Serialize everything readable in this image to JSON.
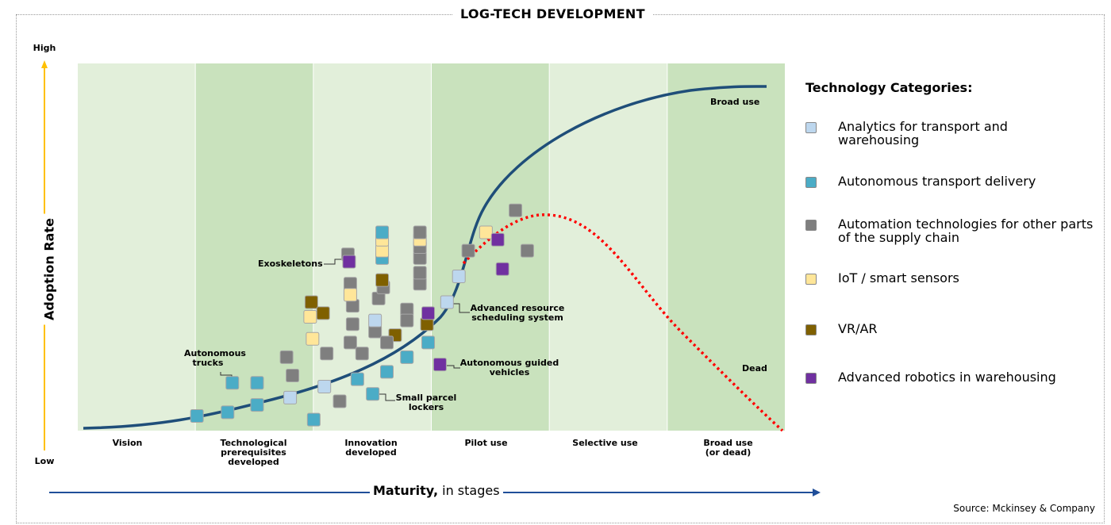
{
  "title": "LOG-TECH DEVELOPMENT",
  "y_axis": {
    "label": "Adoption Rate",
    "high": "High",
    "low": "Low"
  },
  "x_axis": {
    "label_bold": "Maturity,",
    "label_rest": " in stages"
  },
  "stages": [
    "Vision",
    "Technological prerequisites developed",
    "Innovation developed",
    "Pilot use",
    "Selective use",
    "Broad use (or dead)"
  ],
  "curve_labels": {
    "broad": "Broad use",
    "dead": "Dead"
  },
  "annotations": {
    "exoskeletons": "Exoskeletons",
    "autonomous_trucks": "Autonomous trucks",
    "small_parcel_lockers": "Small parcel lockers",
    "advanced_resource": "Advanced resource scheduling system",
    "agv": "Autonomous guided vehicles"
  },
  "legend": {
    "title": "Technology Categories:",
    "items": [
      {
        "key": "A",
        "label": "Analytics for transport and warehousing",
        "color": "#bdd7ee"
      },
      {
        "key": "T",
        "label": "Autonomous transport delivery",
        "color": "#4bacc6"
      },
      {
        "key": "G",
        "label": "Automation technologies for other parts of the supply chain",
        "color": "#7f7f7f"
      },
      {
        "key": "Y",
        "label": "IoT / smart sensors",
        "color": "#ffe699"
      },
      {
        "key": "V",
        "label": "VR/AR",
        "color": "#7f6000"
      },
      {
        "key": "R",
        "label": "Advanced robotics in warehousing",
        "color": "#7030a0"
      }
    ]
  },
  "source": "Source: Mckinsey & Company",
  "chart_data": {
    "type": "scatter",
    "xlabel": "Maturity, in stages",
    "ylabel": "Adoption Rate",
    "x_unit": "stage (0-6)",
    "y_unit": "adoption (0-100, Low to High)",
    "xlim": [
      0,
      6
    ],
    "ylim": [
      0,
      100
    ],
    "curves": [
      "adoption s-curve to Broad use",
      "dotted decline to Dead"
    ],
    "points": [
      {
        "c": "T",
        "x": 1.01,
        "y": 4
      },
      {
        "c": "T",
        "x": 1.27,
        "y": 5
      },
      {
        "c": "T",
        "x": 1.52,
        "y": 7
      },
      {
        "c": "A",
        "x": 1.8,
        "y": 9
      },
      {
        "c": "T",
        "x": 1.31,
        "y": 13
      },
      {
        "c": "T",
        "x": 1.52,
        "y": 13
      },
      {
        "c": "G",
        "x": 1.82,
        "y": 15
      },
      {
        "c": "G",
        "x": 1.77,
        "y": 20
      },
      {
        "c": "A",
        "x": 2.09,
        "y": 12
      },
      {
        "c": "T",
        "x": 2.0,
        "y": 3
      },
      {
        "c": "G",
        "x": 2.22,
        "y": 8
      },
      {
        "c": "Y",
        "x": 1.99,
        "y": 25
      },
      {
        "c": "G",
        "x": 2.11,
        "y": 21
      },
      {
        "c": "V",
        "x": 1.98,
        "y": 35
      },
      {
        "c": "Y",
        "x": 1.97,
        "y": 31
      },
      {
        "c": "V",
        "x": 2.08,
        "y": 32
      },
      {
        "c": "G",
        "x": 2.29,
        "y": 48
      },
      {
        "c": "R",
        "x": 2.3,
        "y": 46
      },
      {
        "c": "G",
        "x": 2.31,
        "y": 40
      },
      {
        "c": "G",
        "x": 2.33,
        "y": 34
      },
      {
        "c": "Y",
        "x": 2.31,
        "y": 37
      },
      {
        "c": "G",
        "x": 2.33,
        "y": 29
      },
      {
        "c": "G",
        "x": 2.31,
        "y": 24
      },
      {
        "c": "G",
        "x": 2.41,
        "y": 21
      },
      {
        "c": "T",
        "x": 2.37,
        "y": 14
      },
      {
        "c": "T",
        "x": 2.5,
        "y": 10
      },
      {
        "c": "T",
        "x": 2.62,
        "y": 16
      },
      {
        "c": "T",
        "x": 2.79,
        "y": 20
      },
      {
        "c": "G",
        "x": 2.55,
        "y": 36
      },
      {
        "c": "G",
        "x": 2.59,
        "y": 39
      },
      {
        "c": "V",
        "x": 2.58,
        "y": 41
      },
      {
        "c": "G",
        "x": 2.52,
        "y": 27
      },
      {
        "c": "A",
        "x": 2.52,
        "y": 30
      },
      {
        "c": "V",
        "x": 2.69,
        "y": 26
      },
      {
        "c": "G",
        "x": 2.62,
        "y": 24
      },
      {
        "c": "T",
        "x": 2.58,
        "y": 47
      },
      {
        "c": "Y",
        "x": 2.58,
        "y": 49
      },
      {
        "c": "Y",
        "x": 2.58,
        "y": 52
      },
      {
        "c": "T",
        "x": 2.58,
        "y": 54
      },
      {
        "c": "G",
        "x": 2.9,
        "y": 40
      },
      {
        "c": "G",
        "x": 2.9,
        "y": 43
      },
      {
        "c": "G",
        "x": 2.9,
        "y": 47
      },
      {
        "c": "G",
        "x": 2.9,
        "y": 50
      },
      {
        "c": "Y",
        "x": 2.9,
        "y": 52
      },
      {
        "c": "G",
        "x": 2.9,
        "y": 54
      },
      {
        "c": "G",
        "x": 2.79,
        "y": 33
      },
      {
        "c": "G",
        "x": 2.79,
        "y": 30
      },
      {
        "c": "V",
        "x": 2.96,
        "y": 29
      },
      {
        "c": "R",
        "x": 2.97,
        "y": 32
      },
      {
        "c": "T",
        "x": 2.97,
        "y": 24
      },
      {
        "c": "R",
        "x": 3.07,
        "y": 18
      },
      {
        "c": "A",
        "x": 3.13,
        "y": 35
      },
      {
        "c": "A",
        "x": 3.23,
        "y": 42
      },
      {
        "c": "G",
        "x": 3.31,
        "y": 49
      },
      {
        "c": "Y",
        "x": 3.46,
        "y": 54
      },
      {
        "c": "R",
        "x": 3.56,
        "y": 52
      },
      {
        "c": "G",
        "x": 3.81,
        "y": 49
      },
      {
        "c": "R",
        "x": 3.6,
        "y": 44
      },
      {
        "c": "G",
        "x": 3.71,
        "y": 60
      }
    ]
  }
}
